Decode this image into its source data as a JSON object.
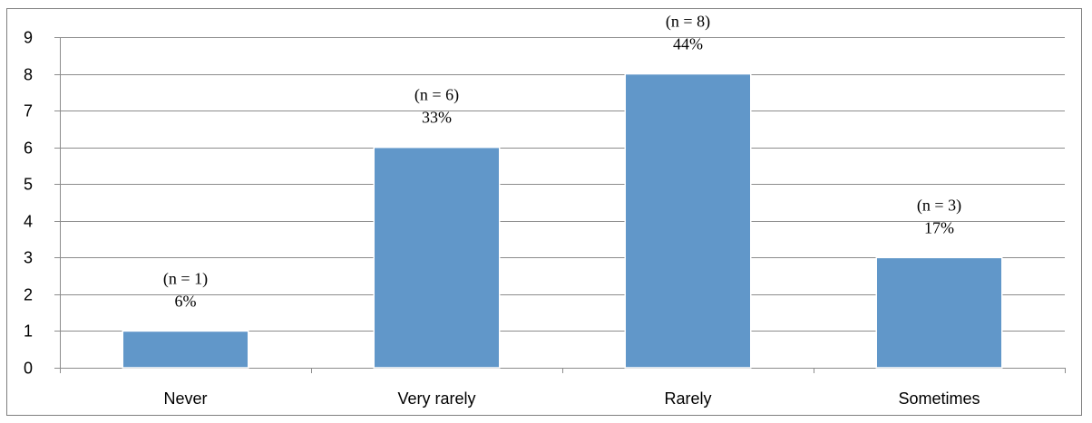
{
  "chart_data": {
    "type": "bar",
    "title": "",
    "xlabel": "",
    "ylabel": "",
    "categories": [
      "Never",
      "Very rarely",
      "Rarely",
      "Sometimes"
    ],
    "values": [
      1,
      6,
      8,
      3
    ],
    "data_labels": [
      [
        "(n = 1)",
        "6%"
      ],
      [
        "(n = 6)",
        "33%"
      ],
      [
        "(n = 8)",
        "44%"
      ],
      [
        "(n = 3)",
        "17%"
      ]
    ],
    "ylim": [
      0,
      9
    ],
    "yticks": [
      0,
      1,
      2,
      3,
      4,
      5,
      6,
      7,
      8,
      9
    ],
    "grid": true,
    "legend": "none",
    "colors": {
      "bar": "#6197c9",
      "grid": "#8c8c8c",
      "frame": "#7f7f7f"
    }
  }
}
